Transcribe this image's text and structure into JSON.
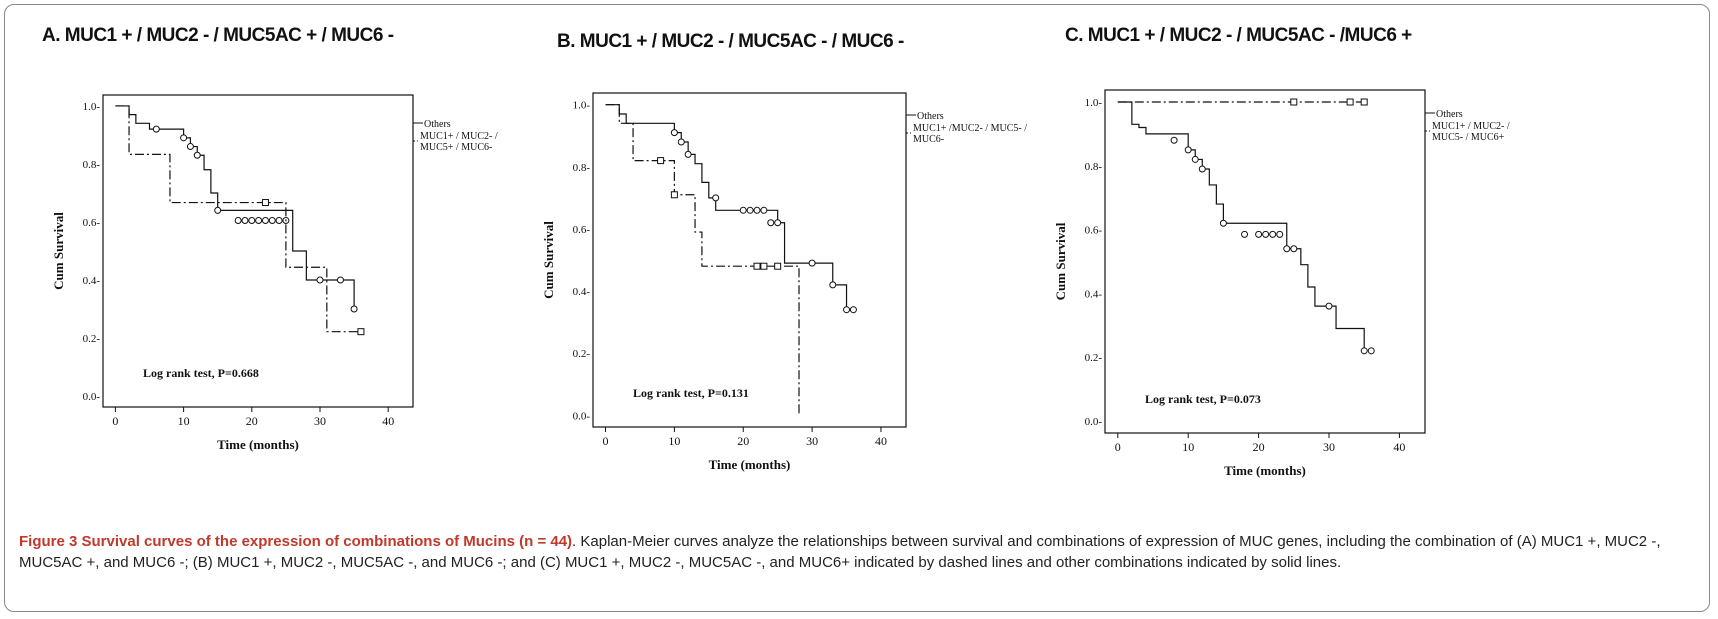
{
  "caption": {
    "bold": "Figure 3 Survival curves of the expression of combinations of Mucins (n = 44)",
    "text": ". Kaplan-Meier curves analyze the relationships between survival and combinations of expression of MUC genes, including the combination of (A) MUC1 +, MUC2 -, MUC5AC +, and MUC6 -; (B) MUC1 +, MUC2 -, MUC5AC -, and MUC6 -; and (C) MUC1 +, MUC2 -, MUC5AC -, and MUC6+ indicated by dashed lines and other combinations indicated by solid lines."
  },
  "colors": {
    "caption_bold": "#c0392b",
    "lines": "#111111",
    "frame": "#8a8a8a"
  },
  "chart_data": [
    {
      "type": "line",
      "panel_title": "A. MUC1 + / MUC2 - / MUC5AC + / MUC6 -",
      "xlabel": "Time (months)",
      "ylabel": "Cum Survival",
      "xlim": [
        0,
        40
      ],
      "ylim": [
        0,
        1
      ],
      "x_ticks": [
        0,
        10,
        20,
        30,
        40
      ],
      "y_ticks": [
        0.0,
        0.2,
        0.4,
        0.6,
        0.8,
        1.0
      ],
      "y_tick_labels": [
        "0.0-",
        "0.2-",
        "0.4-",
        "0.6-",
        "0.8-",
        "1.0-"
      ],
      "annotation": "Log rank test, P=0.668",
      "legend": [
        "Others",
        "MUC1+ / MUC2- / MUC5+ / MUC6-"
      ],
      "series": [
        {
          "name": "Others",
          "style": "solid",
          "x": [
            0,
            2,
            3,
            5,
            10,
            11,
            12,
            13,
            14,
            15,
            26,
            28,
            35
          ],
          "y": [
            1.0,
            0.97,
            0.94,
            0.92,
            0.89,
            0.86,
            0.83,
            0.78,
            0.7,
            0.64,
            0.5,
            0.4,
            0.3
          ],
          "censored": [
            [
              6,
              0.92
            ],
            [
              10,
              0.89
            ],
            [
              11,
              0.86
            ],
            [
              12,
              0.83
            ],
            [
              15,
              0.64
            ],
            [
              18,
              0.605
            ],
            [
              19,
              0.605
            ],
            [
              20,
              0.605
            ],
            [
              21,
              0.605
            ],
            [
              22,
              0.605
            ],
            [
              23,
              0.605
            ],
            [
              24,
              0.605
            ],
            [
              25,
              0.605
            ],
            [
              30,
              0.4
            ],
            [
              33,
              0.4
            ],
            [
              35,
              0.3
            ]
          ]
        },
        {
          "name": "MUC1+ / MUC2- / MUC5+ / MUC6-",
          "style": "dashdot",
          "x": [
            0,
            2,
            8,
            15,
            25,
            31,
            36
          ],
          "y": [
            1.0,
            0.833,
            0.667,
            0.667,
            0.444,
            0.222,
            0.222
          ],
          "censored": [
            [
              22,
              0.667
            ],
            [
              36,
              0.222
            ]
          ]
        }
      ]
    },
    {
      "type": "line",
      "panel_title": "B. MUC1 + / MUC2 - / MUC5AC - / MUC6 -",
      "xlabel": "Time (months)",
      "ylabel": "Cum Survival",
      "xlim": [
        0,
        40
      ],
      "ylim": [
        0,
        1
      ],
      "x_ticks": [
        0,
        10,
        20,
        30,
        40
      ],
      "y_ticks": [
        0.0,
        0.2,
        0.4,
        0.6,
        0.8,
        1.0
      ],
      "y_tick_labels": [
        "0.0-",
        "0.2-",
        "0.4-",
        "0.6-",
        "0.8-",
        "1.0-"
      ],
      "annotation": "Log rank test, P=0.131",
      "legend": [
        "Others",
        "MUC1+ /MUC2- / MUC5- / MUC6-"
      ],
      "series": [
        {
          "name": "Others",
          "style": "solid",
          "x": [
            0,
            2,
            3,
            10,
            11,
            12,
            13,
            14,
            15,
            16,
            25,
            26,
            33,
            35
          ],
          "y": [
            1.0,
            0.97,
            0.94,
            0.91,
            0.88,
            0.84,
            0.81,
            0.75,
            0.7,
            0.66,
            0.62,
            0.49,
            0.42,
            0.34
          ],
          "censored": [
            [
              10,
              0.91
            ],
            [
              11,
              0.88
            ],
            [
              12,
              0.84
            ],
            [
              16,
              0.7
            ],
            [
              20,
              0.66
            ],
            [
              21,
              0.66
            ],
            [
              22,
              0.66
            ],
            [
              23,
              0.66
            ],
            [
              24,
              0.62
            ],
            [
              25,
              0.62
            ],
            [
              30,
              0.49
            ],
            [
              33,
              0.42
            ],
            [
              35,
              0.34
            ],
            [
              36,
              0.34
            ]
          ]
        },
        {
          "name": "MUC1+ /MUC2- / MUC5- / MUC6-",
          "style": "dashdot",
          "x": [
            0,
            2,
            4,
            10,
            13,
            14,
            28,
            28.1
          ],
          "y": [
            1.0,
            0.94,
            0.82,
            0.71,
            0.59,
            0.48,
            0.48,
            0.0
          ],
          "censored": [
            [
              8,
              0.82
            ],
            [
              10,
              0.71
            ],
            [
              22,
              0.48
            ],
            [
              23,
              0.48
            ],
            [
              25,
              0.48
            ]
          ]
        }
      ]
    },
    {
      "type": "line",
      "panel_title": "C. MUC1 + / MUC2 - / MUC5AC - /MUC6 +",
      "xlabel": "Time (months)",
      "ylabel": "Cum Survival",
      "xlim": [
        0,
        40
      ],
      "ylim": [
        0,
        1
      ],
      "x_ticks": [
        0,
        10,
        20,
        30,
        40
      ],
      "y_ticks": [
        0.0,
        0.2,
        0.4,
        0.6,
        0.8,
        1.0
      ],
      "y_tick_labels": [
        "0.0-",
        "0.2-",
        "0.4-",
        "0.6-",
        "0.8-",
        "1.0-"
      ],
      "annotation": "Log rank test, P=0.073",
      "legend": [
        "Others",
        "MUC1+ / MUC2- / MUC5- / MUC6+"
      ],
      "series": [
        {
          "name": "Others",
          "style": "solid",
          "x": [
            0,
            2,
            3,
            4,
            10,
            11,
            12,
            13,
            14,
            15,
            24,
            26,
            27,
            28,
            31,
            35
          ],
          "y": [
            1.0,
            0.93,
            0.92,
            0.9,
            0.85,
            0.82,
            0.79,
            0.74,
            0.68,
            0.62,
            0.54,
            0.49,
            0.42,
            0.36,
            0.29,
            0.22
          ],
          "censored": [
            [
              8,
              0.88
            ],
            [
              10,
              0.85
            ],
            [
              11,
              0.82
            ],
            [
              12,
              0.79
            ],
            [
              15,
              0.62
            ],
            [
              18,
              0.585
            ],
            [
              20,
              0.585
            ],
            [
              21,
              0.585
            ],
            [
              22,
              0.585
            ],
            [
              23,
              0.585
            ],
            [
              24,
              0.54
            ],
            [
              25,
              0.54
            ],
            [
              30,
              0.36
            ],
            [
              35,
              0.22
            ],
            [
              36,
              0.22
            ]
          ]
        },
        {
          "name": "MUC1+ / MUC2- / MUC5- / MUC6+",
          "style": "dashdot",
          "x": [
            0,
            35
          ],
          "y": [
            1.0,
            1.0
          ],
          "censored": [
            [
              25,
              1.0
            ],
            [
              33,
              1.0
            ],
            [
              35,
              1.0
            ]
          ]
        }
      ]
    }
  ]
}
